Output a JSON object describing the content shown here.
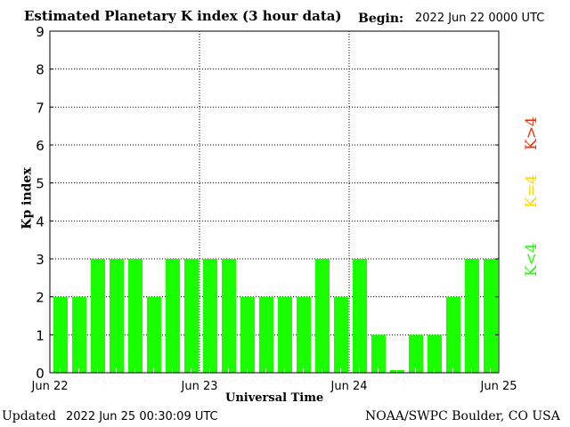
{
  "chart_data": {
    "type": "bar",
    "title": "Estimated Planetary K index (3 hour data)",
    "begin_label": "Begin:",
    "begin_value": "2022 Jun 22 0000 UTC",
    "xlabel": "Universal Time",
    "ylabel": "Kp index",
    "ylim": [
      0,
      9
    ],
    "yticks": [
      "0",
      "1",
      "2",
      "3",
      "4",
      "5",
      "6",
      "7",
      "8",
      "9"
    ],
    "xticks": [
      "Jun 22",
      "Jun 23",
      "Jun 24",
      "Jun 25"
    ],
    "grid": "dotted",
    "bar_color": "#1aff00",
    "values": [
      2,
      2,
      3,
      3,
      3,
      2,
      3,
      3,
      3,
      3,
      2,
      2,
      2,
      2,
      3,
      2,
      3,
      1,
      0,
      1,
      1,
      2,
      3,
      3
    ],
    "legend": [
      {
        "label": "K<4",
        "color": "#1aff00"
      },
      {
        "label": "K=4",
        "color": "#ffd700"
      },
      {
        "label": "K>4",
        "color": "#ff2a00"
      }
    ]
  },
  "footer": {
    "updated_label": "Updated",
    "updated_value": "2022 Jun 25 00:30:09 UTC",
    "source": "NOAA/SWPC Boulder, CO USA"
  }
}
